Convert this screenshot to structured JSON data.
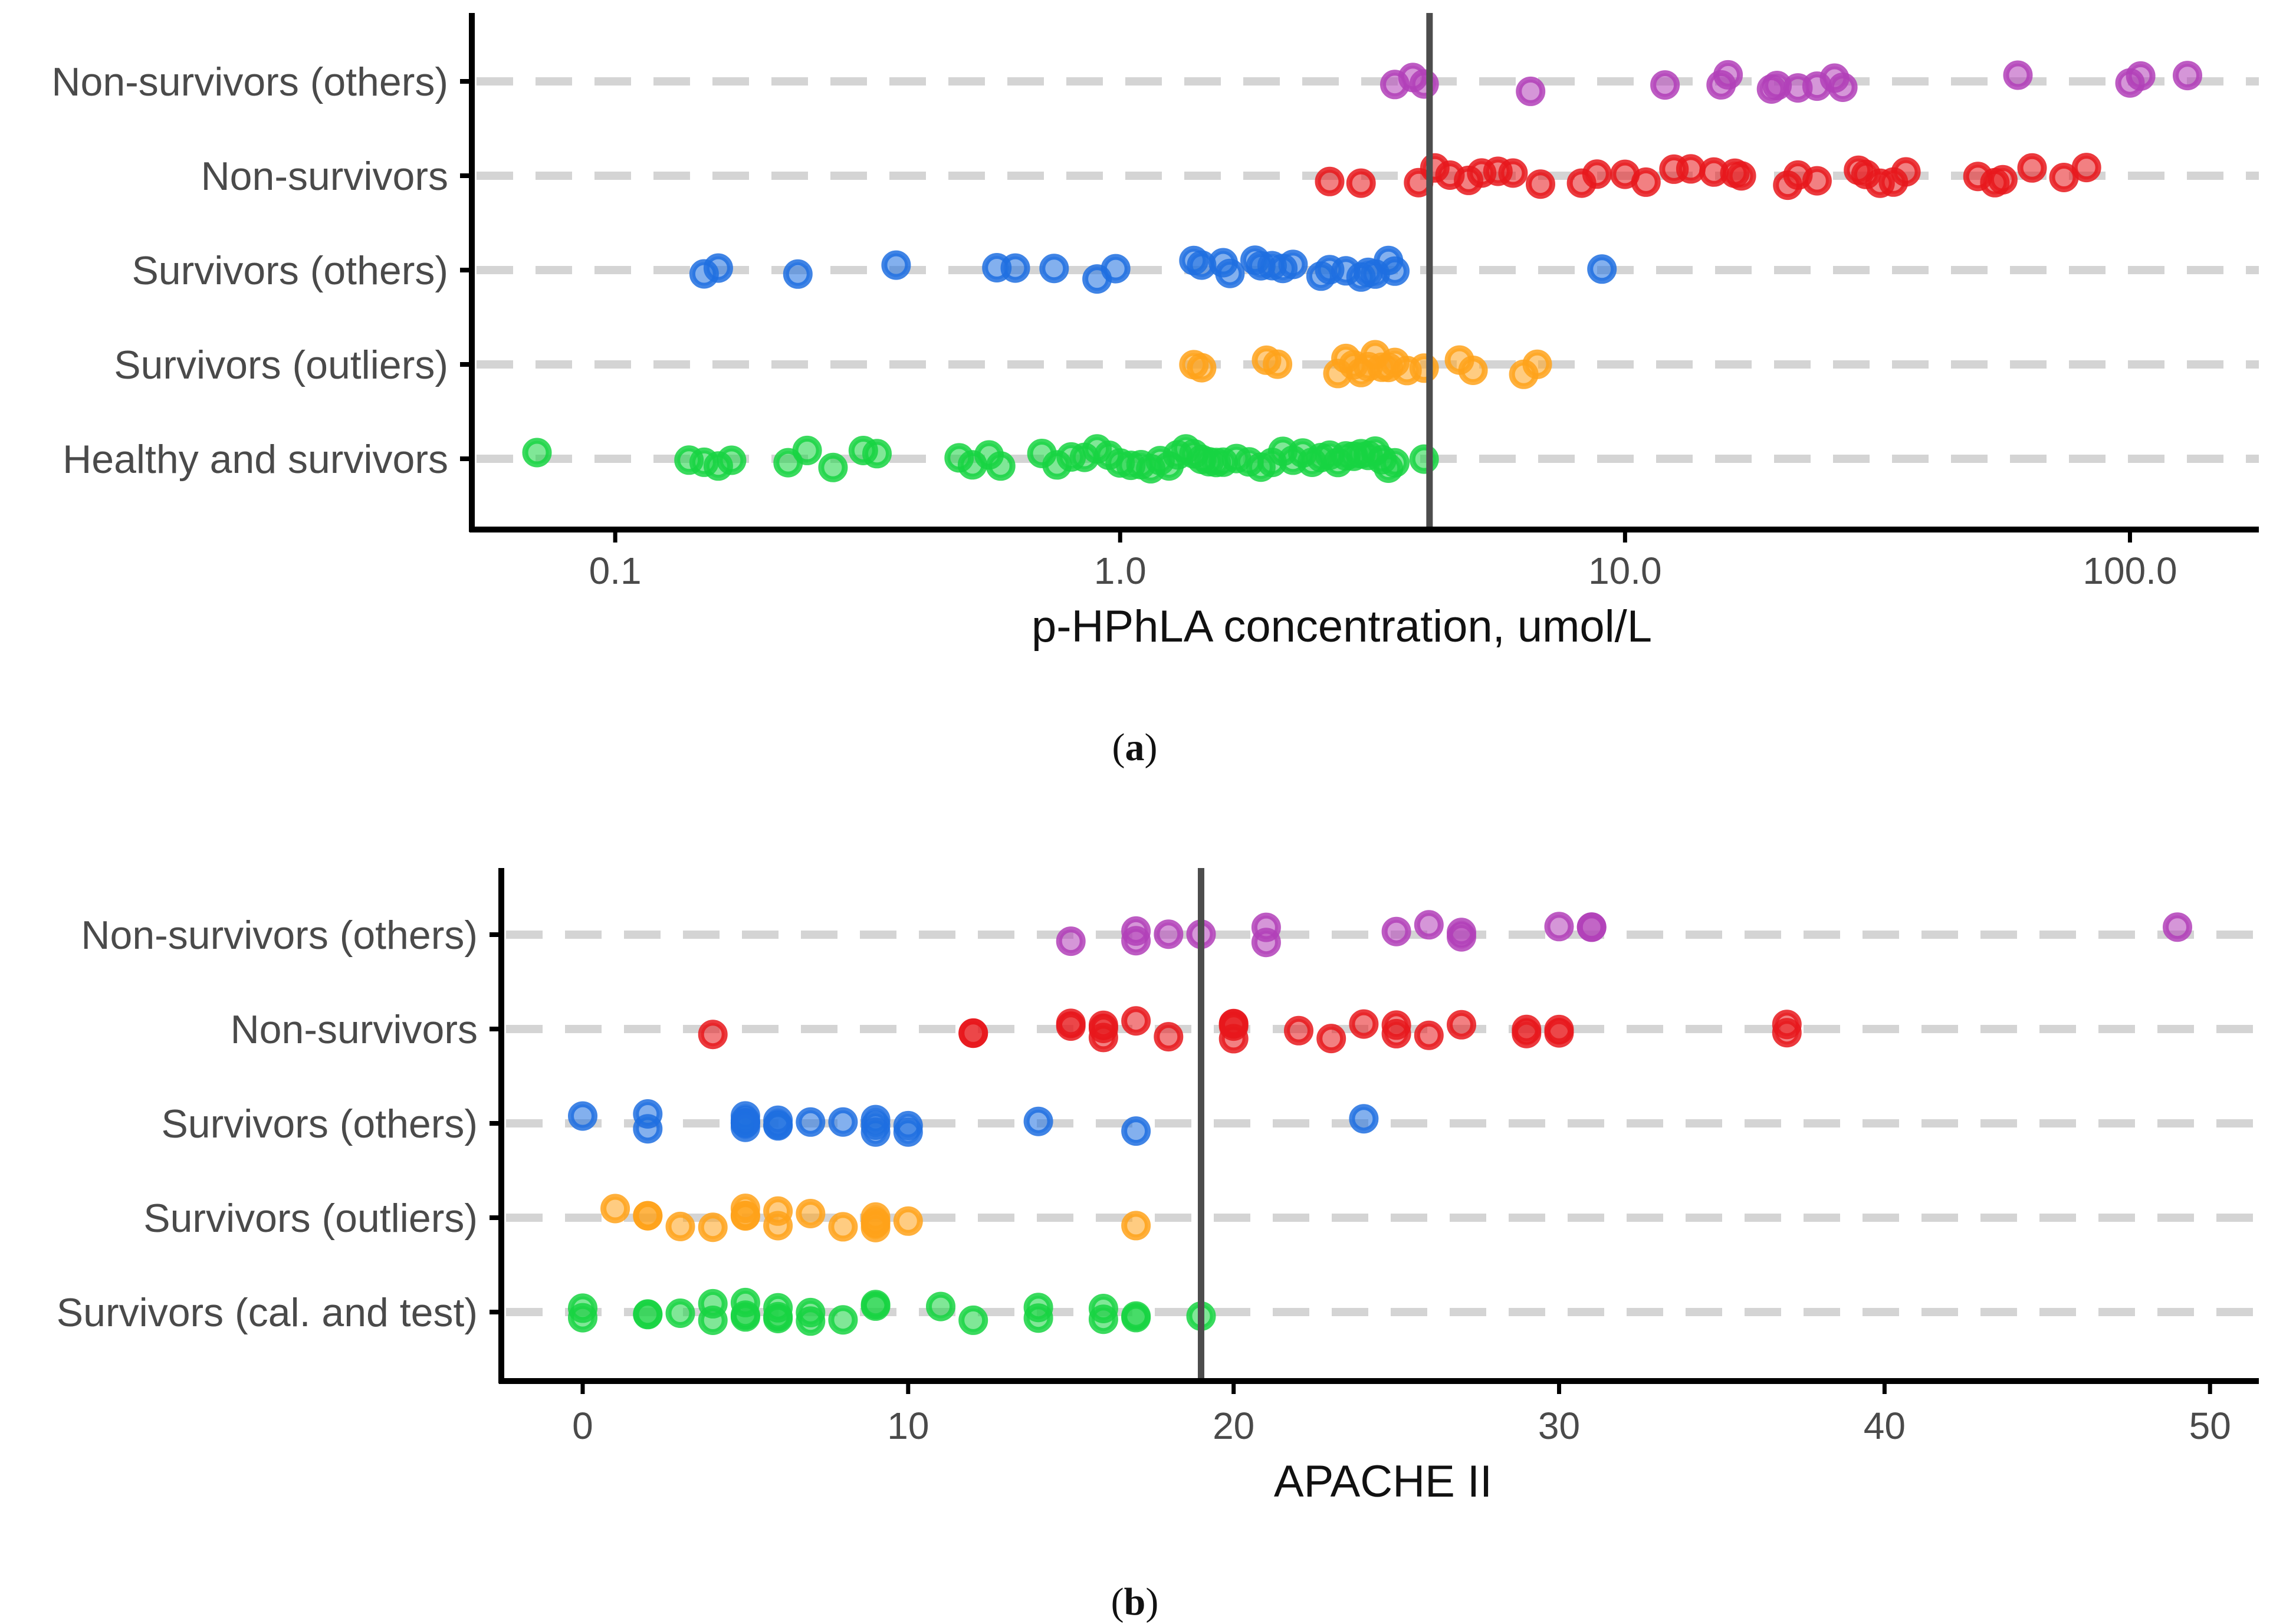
{
  "colors": {
    "purple": "#B23FB8",
    "red": "#E8171C",
    "blue": "#1E6FE0",
    "orange": "#FFA21A",
    "green": "#17D442",
    "gridline": "#D4D4D4",
    "axis": "#000000",
    "threshold": "#4D4D4D"
  },
  "chart_data": [
    {
      "id": "a",
      "type": "scatter",
      "panel_label": {
        "open": "(",
        "letter": "a",
        "close": ")"
      },
      "xlabel": "p-HPhLA concentration, umol/L",
      "xscale": "log10",
      "xlim": [
        0.052,
        180
      ],
      "xticks": [
        0.1,
        1.0,
        10.0,
        100.0
      ],
      "xtick_labels": [
        "0.1",
        "1.0",
        "10.0",
        "100.0"
      ],
      "threshold": 4.1,
      "categories": [
        "Non-survivors (others)",
        "Non-survivors",
        "Survivors (others)",
        "Survivors (outliers)",
        "Healthy and survivors"
      ],
      "series": [
        {
          "name": "Non-survivors (others)",
          "color": "purple",
          "values": [
            3.5,
            3.8,
            4.0,
            6.5,
            12.0,
            15.5,
            16.0,
            19.5,
            20.0,
            22.0,
            24.0,
            26.0,
            27.0,
            60.0,
            100.0,
            105.0,
            130.0
          ]
        },
        {
          "name": "Non-survivors",
          "color": "red",
          "values": [
            2.6,
            3.0,
            3.9,
            4.2,
            4.5,
            4.9,
            5.2,
            5.6,
            6.0,
            6.8,
            8.2,
            8.8,
            10.0,
            11.0,
            12.5,
            13.5,
            15.0,
            16.5,
            17.0,
            21.0,
            22.0,
            24.0,
            29.0,
            30.0,
            32.0,
            34.0,
            36.0,
            50.0,
            54.0,
            56.0,
            64.0,
            74.0,
            82.0
          ]
        },
        {
          "name": "Survivors (others)",
          "color": "blue",
          "values": [
            0.15,
            0.16,
            0.23,
            0.36,
            0.57,
            0.62,
            0.74,
            0.9,
            0.98,
            1.4,
            1.45,
            1.6,
            1.65,
            1.85,
            1.9,
            2.0,
            2.1,
            2.2,
            2.5,
            2.6,
            2.8,
            3.0,
            3.1,
            3.2,
            3.4,
            3.5,
            9.0
          ]
        },
        {
          "name": "Survivors (outliers)",
          "color": "orange",
          "values": [
            1.4,
            1.45,
            1.95,
            2.05,
            2.7,
            2.8,
            2.9,
            3.0,
            3.1,
            3.2,
            3.3,
            3.4,
            3.5,
            3.7,
            4.0,
            4.7,
            5.0,
            6.3,
            6.7
          ]
        },
        {
          "name": "Healthy and survivors",
          "color": "green",
          "values": [
            0.07,
            0.14,
            0.15,
            0.16,
            0.17,
            0.22,
            0.24,
            0.27,
            0.31,
            0.33,
            0.48,
            0.51,
            0.55,
            0.58,
            0.7,
            0.75,
            0.8,
            0.85,
            0.9,
            0.95,
            1.0,
            1.05,
            1.1,
            1.15,
            1.2,
            1.25,
            1.3,
            1.35,
            1.4,
            1.45,
            1.5,
            1.55,
            1.6,
            1.7,
            1.8,
            1.9,
            2.0,
            2.1,
            2.2,
            2.3,
            2.4,
            2.5,
            2.6,
            2.7,
            2.8,
            2.9,
            3.0,
            3.1,
            3.2,
            3.3,
            3.4,
            3.5,
            4.0
          ]
        }
      ]
    },
    {
      "id": "b",
      "type": "scatter",
      "panel_label": {
        "open": "(",
        "letter": "b",
        "close": ")"
      },
      "xlabel": "APACHE II",
      "xscale": "linear",
      "xlim": [
        -2.5,
        51.5
      ],
      "xticks": [
        0,
        10,
        20,
        30,
        40,
        50
      ],
      "xtick_labels": [
        "0",
        "10",
        "20",
        "30",
        "40",
        "50"
      ],
      "threshold": 19,
      "categories": [
        "Non-survivors (others)",
        "Non-survivors",
        "Survivors (others)",
        "Survivors (outliers)",
        "Survivors (cal. and test)"
      ],
      "series": [
        {
          "name": "Non-survivors (others)",
          "color": "purple",
          "values": [
            15,
            17,
            17,
            18,
            19,
            21,
            21,
            25,
            26,
            27,
            27,
            30,
            31,
            31,
            49
          ]
        },
        {
          "name": "Non-survivors",
          "color": "red",
          "values": [
            4,
            12,
            12,
            15,
            15,
            16,
            16,
            16,
            17,
            18,
            20,
            20,
            20,
            20,
            22,
            23,
            24,
            25,
            25,
            26,
            27,
            29,
            29,
            30,
            30,
            37,
            37
          ]
        },
        {
          "name": "Survivors (others)",
          "color": "blue",
          "values": [
            0,
            2,
            2,
            5,
            5,
            5,
            5,
            5,
            6,
            6,
            6,
            7,
            8,
            9,
            9,
            9,
            10,
            10,
            14,
            17,
            24
          ]
        },
        {
          "name": "Survivors (outliers)",
          "color": "orange",
          "values": [
            1,
            2,
            2,
            3,
            4,
            5,
            5,
            5,
            6,
            6,
            7,
            8,
            9,
            9,
            9,
            9,
            10,
            17
          ]
        },
        {
          "name": "Survivors (cal. and test)",
          "color": "green",
          "values": [
            0,
            0,
            2,
            2,
            3,
            4,
            4,
            5,
            5,
            5,
            6,
            6,
            6,
            7,
            7,
            8,
            9,
            9,
            11,
            12,
            14,
            14,
            16,
            16,
            17,
            17,
            19
          ]
        }
      ]
    }
  ]
}
